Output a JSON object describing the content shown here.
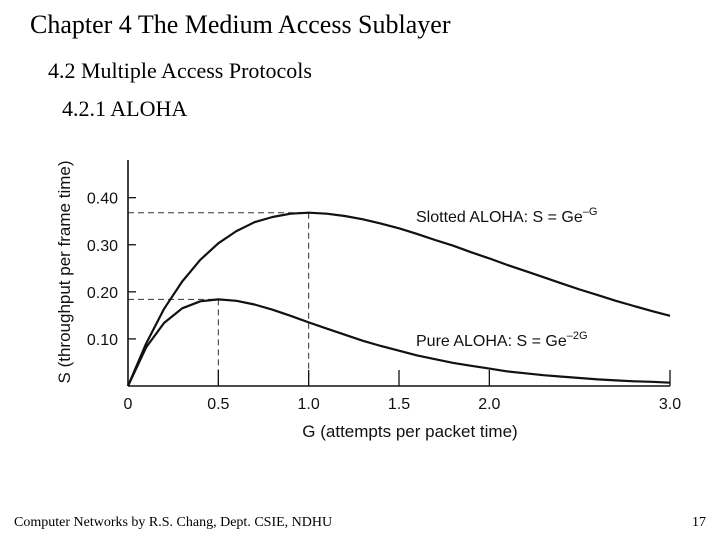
{
  "slide": {
    "title": "Chapter 4 The Medium Access Sublayer",
    "section": "4.2 Multiple Access Protocols",
    "subsection": "4.2.1 ALOHA",
    "footer_left": "Computer Networks by R.S. Chang, Dept. CSIE, NDHU",
    "page_number": "17"
  },
  "chart_data": {
    "type": "line",
    "xlabel": "G (attempts per packet time)",
    "ylabel": "S (throughput per frame time)",
    "xlim": [
      0,
      3.0
    ],
    "ylim": [
      0,
      0.48
    ],
    "x_ticks": [
      {
        "value": 0,
        "label": "0"
      },
      {
        "value": 0.5,
        "label": "0.5"
      },
      {
        "value": 1.0,
        "label": "1.0"
      },
      {
        "value": 1.5,
        "label": "1.5"
      },
      {
        "value": 2.0,
        "label": "2.0"
      },
      {
        "value": 3.0,
        "label": "3.0"
      }
    ],
    "y_ticks": [
      {
        "value": 0.1,
        "label": "0.10"
      },
      {
        "value": 0.2,
        "label": "0.20"
      },
      {
        "value": 0.3,
        "label": "0.30"
      },
      {
        "value": 0.4,
        "label": "0.40"
      }
    ],
    "grid": false,
    "series": [
      {
        "name": "Slotted ALOHA: S = Ge",
        "exponent": "–G",
        "x": [
          0,
          0.1,
          0.2,
          0.3,
          0.4,
          0.5,
          0.6,
          0.7,
          0.8,
          0.9,
          1.0,
          1.1,
          1.2,
          1.3,
          1.4,
          1.5,
          1.6,
          1.7,
          1.8,
          1.9,
          2.0,
          2.1,
          2.2,
          2.3,
          2.4,
          2.5,
          2.6,
          2.7,
          2.8,
          2.9,
          3.0
        ],
        "y": [
          0,
          0.09,
          0.164,
          0.222,
          0.268,
          0.303,
          0.329,
          0.348,
          0.359,
          0.366,
          0.368,
          0.366,
          0.361,
          0.354,
          0.345,
          0.335,
          0.323,
          0.31,
          0.298,
          0.284,
          0.271,
          0.257,
          0.244,
          0.231,
          0.218,
          0.205,
          0.193,
          0.181,
          0.17,
          0.159,
          0.149
        ],
        "peak": {
          "x": 1.0,
          "y": 0.368
        }
      },
      {
        "name": "Pure ALOHA: S = Ge",
        "exponent": "–2G",
        "x": [
          0,
          0.1,
          0.2,
          0.3,
          0.4,
          0.5,
          0.6,
          0.7,
          0.8,
          0.9,
          1.0,
          1.1,
          1.2,
          1.3,
          1.4,
          1.5,
          1.6,
          1.7,
          1.8,
          1.9,
          2.0,
          2.1,
          2.2,
          2.3,
          2.4,
          2.5,
          2.6,
          2.7,
          2.8,
          2.9,
          3.0
        ],
        "y": [
          0,
          0.082,
          0.134,
          0.165,
          0.18,
          0.184,
          0.181,
          0.173,
          0.162,
          0.149,
          0.135,
          0.122,
          0.109,
          0.096,
          0.085,
          0.075,
          0.065,
          0.057,
          0.049,
          0.043,
          0.037,
          0.031,
          0.027,
          0.023,
          0.02,
          0.017,
          0.014,
          0.012,
          0.01,
          0.009,
          0.007
        ],
        "peak": {
          "x": 0.5,
          "y": 0.184
        }
      }
    ]
  }
}
